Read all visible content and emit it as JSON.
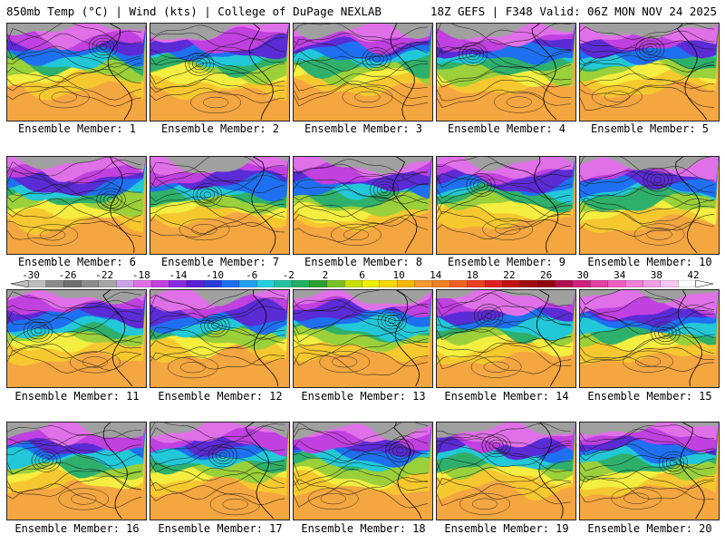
{
  "header": {
    "left": "850mb Temp (°C) | Wind (kts) | College of DuPage NEXLAB",
    "right": "18Z GEFS | F348 Valid: 06Z MON NOV 24 2025"
  },
  "panels": [
    {
      "label": "Ensemble Member: 1"
    },
    {
      "label": "Ensemble Member: 2"
    },
    {
      "label": "Ensemble Member: 3"
    },
    {
      "label": "Ensemble Member: 4"
    },
    {
      "label": "Ensemble Member: 5"
    },
    {
      "label": "Ensemble Member: 6"
    },
    {
      "label": "Ensemble Member: 7"
    },
    {
      "label": "Ensemble Member: 8"
    },
    {
      "label": "Ensemble Member: 9"
    },
    {
      "label": "Ensemble Member: 10"
    },
    {
      "label": "Ensemble Member: 11"
    },
    {
      "label": "Ensemble Member: 12"
    },
    {
      "label": "Ensemble Member: 13"
    },
    {
      "label": "Ensemble Member: 14"
    },
    {
      "label": "Ensemble Member: 15"
    },
    {
      "label": "Ensemble Member: 16"
    },
    {
      "label": "Ensemble Member: 17"
    },
    {
      "label": "Ensemble Member: 18"
    },
    {
      "label": "Ensemble Member: 19"
    },
    {
      "label": "Ensemble Member: 20"
    }
  ],
  "colorbar": {
    "ticks": [
      "-30",
      "-26",
      "-22",
      "-18",
      "-14",
      "-10",
      "-6",
      "-2",
      "2",
      "6",
      "10",
      "14",
      "18",
      "22",
      "26",
      "30",
      "34",
      "38",
      "42"
    ],
    "colors": [
      "#bfbfbf",
      "#8c8c8c",
      "#6e6e6e",
      "#8c8c8c",
      "#a6a6a6",
      "#c8a2e6",
      "#e070e8",
      "#c040e0",
      "#8a2be2",
      "#5b1fd6",
      "#2a3bd8",
      "#1e6ef0",
      "#1ea0f0",
      "#22d0e0",
      "#20c0a0",
      "#20b060",
      "#2ea02e",
      "#7ac020",
      "#c8e000",
      "#f0f000",
      "#f8d800",
      "#f8b800",
      "#f89830",
      "#f08020",
      "#f06020",
      "#e84020",
      "#e02020",
      "#c01010",
      "#a00c0c",
      "#900010",
      "#b01050",
      "#d02080",
      "#e040a0",
      "#f060c0",
      "#f080d8",
      "#f0a0e8",
      "#f8c8f4",
      "#ffffff"
    ]
  }
}
